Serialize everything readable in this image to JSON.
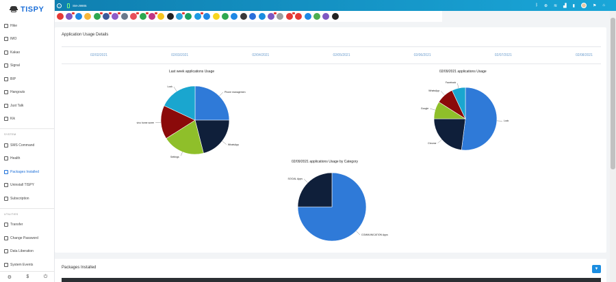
{
  "brand": "TISPY",
  "sidebar": {
    "apps": [
      {
        "label": "Hike",
        "icon": "hike-icon"
      },
      {
        "label": "IMO",
        "icon": "imo-icon"
      },
      {
        "label": "Kakao",
        "icon": "kakao-icon"
      },
      {
        "label": "Signal",
        "icon": "signal-icon"
      },
      {
        "label": "BIP",
        "icon": "bip-icon"
      },
      {
        "label": "Hangouts",
        "icon": "hangouts-icon"
      },
      {
        "label": "Just Talk",
        "icon": "just-talk-icon"
      },
      {
        "label": "Kik",
        "icon": "kik-icon"
      }
    ],
    "system_heading": "SYSTEM",
    "system_items": [
      {
        "label": "SMS Command",
        "icon": "terminal-icon"
      },
      {
        "label": "Health",
        "icon": "pulse-icon"
      },
      {
        "label": "Packages Installed",
        "icon": "package-icon",
        "active": true
      },
      {
        "label": "Uninstall TISPY",
        "icon": "uninstall-icon"
      },
      {
        "label": "Subscription",
        "icon": "dollar-icon"
      }
    ],
    "utilities_heading": "UTILITIES",
    "utility_items": [
      {
        "label": "Transfer",
        "icon": "transfer-icon"
      },
      {
        "label": "Change Password",
        "icon": "lock-icon"
      },
      {
        "label": "Data Liberation",
        "icon": "database-icon"
      },
      {
        "label": "System Events",
        "icon": "events-icon"
      }
    ],
    "bottom_icons": [
      "settings-icon",
      "dollar-icon",
      "power-icon"
    ]
  },
  "topbar": {
    "device_name": "SM-J9905",
    "right_icons": [
      "bluetooth-icon",
      "location-icon",
      "wifi-icon",
      "signal-icon",
      "battery-icon",
      "avatar",
      "flag-icon",
      "home-icon"
    ]
  },
  "app_strip": {
    "icons": [
      {
        "name": "youtube-icon",
        "color": "#e53935",
        "badge": false
      },
      {
        "name": "viber-icon",
        "color": "#7e57c2",
        "badge": true
      },
      {
        "name": "email-icon",
        "color": "#1e88e5",
        "badge": false
      },
      {
        "name": "notes-icon",
        "color": "#f6b63a",
        "badge": false
      },
      {
        "name": "whatsapp-icon",
        "color": "#2ea84f",
        "badge": true
      },
      {
        "name": "facebook-icon",
        "color": "#3b5998",
        "badge": true
      },
      {
        "name": "viber-alt-icon",
        "color": "#8e5cc7",
        "badge": true
      },
      {
        "name": "gallery-icon",
        "color": "#6b7a8c",
        "badge": false
      },
      {
        "name": "tinder-icon",
        "color": "#e8505b",
        "badge": true
      },
      {
        "name": "line-icon",
        "color": "#2ea84f",
        "badge": true
      },
      {
        "name": "instagram-icon",
        "color": "#c13584",
        "badge": true
      },
      {
        "name": "snapchat-icon",
        "color": "#f7c51e",
        "badge": false
      },
      {
        "name": "tiktok-icon",
        "color": "#222222",
        "badge": false
      },
      {
        "name": "telegram-icon",
        "color": "#2aa1da",
        "badge": true
      },
      {
        "name": "hangouts-icon",
        "color": "#1ba160",
        "badge": false
      },
      {
        "name": "skype-icon",
        "color": "#1e9be3",
        "badge": true
      },
      {
        "name": "imo-icon",
        "color": "#1e88e5",
        "badge": false
      },
      {
        "name": "kakao-icon",
        "color": "#f7d51e",
        "badge": false
      },
      {
        "name": "line-alt-icon",
        "color": "#2ea84f",
        "badge": false
      },
      {
        "name": "messenger-icon",
        "color": "#1e88e5",
        "badge": false
      },
      {
        "name": "kik-icon",
        "color": "#3a3a3a",
        "badge": false
      },
      {
        "name": "signal-icon",
        "color": "#2a6fdb",
        "badge": false
      },
      {
        "name": "duo-icon",
        "color": "#1a8de0",
        "badge": false
      },
      {
        "name": "viber-purple-icon",
        "color": "#7e57c2",
        "badge": true
      },
      {
        "name": "settings-icon",
        "color": "#9e9e9e",
        "badge": false
      },
      {
        "name": "sms-icon",
        "color": "#e53935",
        "badge": true
      },
      {
        "name": "phone-icon",
        "color": "#e53935",
        "badge": false
      },
      {
        "name": "calls-icon",
        "color": "#1e88e5",
        "badge": false
      },
      {
        "name": "download-icon",
        "color": "#4caf50",
        "badge": false
      },
      {
        "name": "map-pin-icon",
        "color": "#7e57c2",
        "badge": false
      },
      {
        "name": "browser-icon",
        "color": "#222222",
        "badge": false
      }
    ]
  },
  "panel": {
    "title": "Application Usage Details",
    "dates": [
      "02/02/2021",
      "02/03/2021",
      "02/04/2021",
      "02/05/2021",
      "02/06/2021",
      "02/07/2021",
      "02/08/2021"
    ]
  },
  "chart_data": [
    {
      "type": "pie",
      "title": "Last week applications Usage",
      "slices": [
        {
          "label": "Phone managemen",
          "value": 25,
          "color": "#2f7ad8"
        },
        {
          "label": "WhatsApp",
          "value": 21,
          "color": "#0f1f3a"
        },
        {
          "label": "Settings",
          "value": 20,
          "color": "#8fbf2a"
        },
        {
          "label": "vivo home scree",
          "value": 16,
          "color": "#8b0a0a"
        },
        {
          "label": "Lock",
          "value": 18,
          "color": "#1aa6cf"
        }
      ]
    },
    {
      "type": "pie",
      "title": "02/09/2021 applications Usage",
      "slices": [
        {
          "label": "Lock",
          "value": 52,
          "color": "#2f7ad8"
        },
        {
          "label": "Chrome",
          "value": 23,
          "color": "#0f1f3a"
        },
        {
          "label": "Google",
          "value": 9,
          "color": "#8fbf2a"
        },
        {
          "label": "WhatsApp",
          "value": 9,
          "color": "#8b0a0a"
        },
        {
          "label": "Facebook",
          "value": 7,
          "color": "#1aa6cf"
        }
      ]
    },
    {
      "type": "pie",
      "title": "02/09/2021 applications Usage by Category",
      "slices": [
        {
          "label": "COMMUNICATION Apps",
          "value": 75,
          "color": "#2f7ad8"
        },
        {
          "label": "SOCIAL Apps",
          "value": 25,
          "color": "#0f1f3a"
        }
      ]
    }
  ],
  "packages": {
    "title": "Packages Installed"
  }
}
